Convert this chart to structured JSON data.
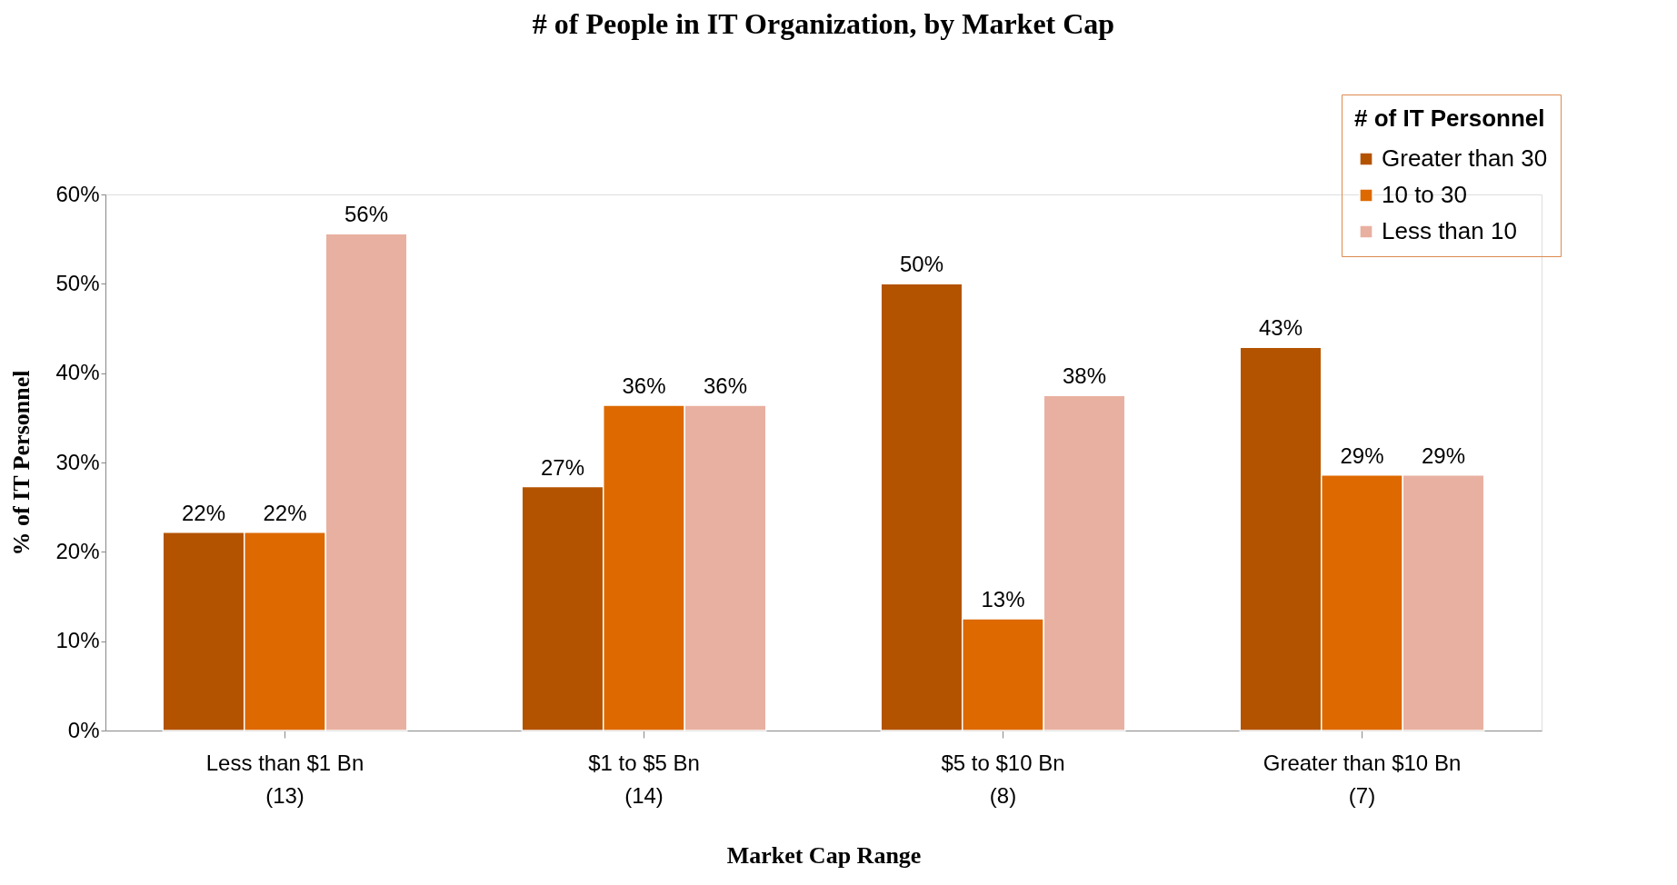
{
  "chart_data": {
    "type": "bar",
    "title": "# of People in IT Organization, by Market Cap",
    "xlabel": "Market Cap Range",
    "ylabel": "% of IT Personnel",
    "legend_title": "# of IT Personnel",
    "legend": "top right",
    "categories": [
      "Less than $1 Bn\n(13)",
      "$1 to $5 Bn\n(14)",
      "$5 to $10 Bn\n(8)",
      "Greater than $10 Bn\n(7)"
    ],
    "series": [
      {
        "name": "Greater than 30",
        "color": "#b35300",
        "values": [
          22.2,
          27.3,
          50,
          42.9
        ],
        "value_labels": [
          "22%",
          "27%",
          "50%",
          "43%"
        ]
      },
      {
        "name": "10 to 30",
        "color": "#dd6900",
        "values": [
          22.2,
          36.4,
          12.5,
          28.6
        ],
        "value_labels": [
          "22%",
          "36%",
          "13%",
          "29%"
        ]
      },
      {
        "name": "Less than 10",
        "color": "#e8b0a0",
        "values": [
          55.6,
          36.4,
          37.5,
          28.6
        ],
        "value_labels": [
          "56%",
          "36%",
          "38%",
          "29%"
        ]
      }
    ],
    "ylim": [
      0,
      60
    ],
    "yticks": [
      {
        "value": 0,
        "label": "0%"
      },
      {
        "value": 10,
        "label": "10%"
      },
      {
        "value": 20,
        "label": "20%"
      },
      {
        "value": 30,
        "label": "30%"
      },
      {
        "value": 40,
        "label": "40%"
      },
      {
        "value": 50,
        "label": "50%"
      },
      {
        "value": 60,
        "label": "60%"
      }
    ],
    "grid": false
  }
}
